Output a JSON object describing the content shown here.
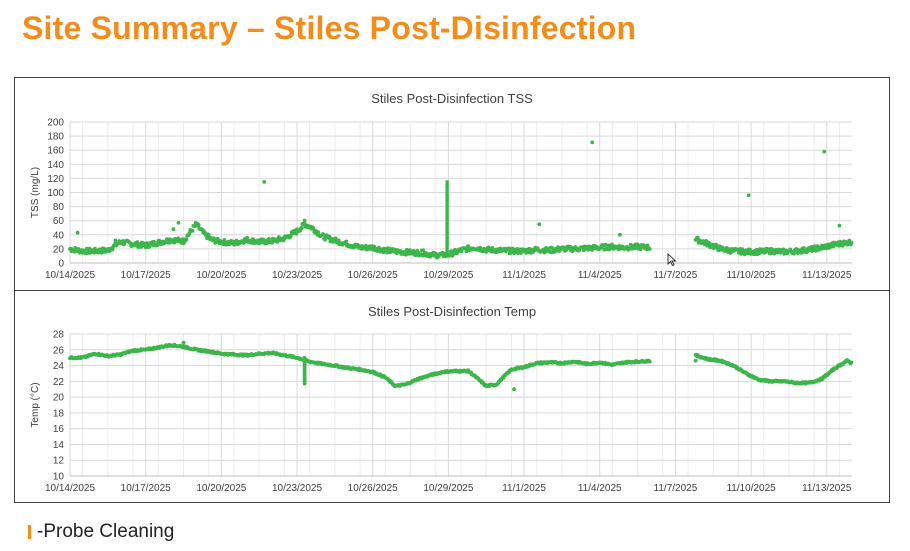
{
  "slide": {
    "title": "Site Summary – Stiles Post-Disinfection",
    "legend_label": "-Probe Cleaning",
    "accent_color": "#F28C1A"
  },
  "chart_data": [
    {
      "id": "tss",
      "type": "scatter",
      "title": "Stiles Post-Disinfection TSS",
      "xlabel": "",
      "ylabel": "TSS (mg/L)",
      "ylim": [
        0,
        200
      ],
      "yticks": [
        0,
        20,
        40,
        60,
        80,
        100,
        120,
        140,
        160,
        180,
        200
      ],
      "x_axis": {
        "type": "date",
        "range_days": [
          0,
          31
        ],
        "tick_days": [
          0,
          3,
          6,
          9,
          12,
          15,
          18,
          21,
          24,
          27,
          30
        ],
        "tick_labels": [
          "10/14/2025",
          "10/17/2025",
          "10/20/2025",
          "10/23/2025",
          "10/26/2025",
          "10/29/2025",
          "11/1/2025",
          "11/4/2025",
          "11/7/2025",
          "11/10/2025",
          "11/13/2025"
        ]
      },
      "grid": true,
      "color": "#3CB54A",
      "series": [
        {
          "name": "TSS",
          "continuous": [
            [
              0.0,
              20
            ],
            [
              0.5,
              17
            ],
            [
              1.0,
              17
            ],
            [
              1.5,
              18
            ],
            [
              2.0,
              30
            ],
            [
              2.5,
              27
            ],
            [
              3.0,
              25
            ],
            [
              3.5,
              29
            ],
            [
              4.0,
              33
            ],
            [
              4.5,
              31
            ],
            [
              5.0,
              55
            ],
            [
              5.3,
              42
            ],
            [
              5.6,
              33
            ],
            [
              6.0,
              30
            ],
            [
              6.5,
              28
            ],
            [
              7.0,
              33
            ],
            [
              7.5,
              30
            ],
            [
              8.0,
              31
            ],
            [
              8.5,
              35
            ],
            [
              9.0,
              45
            ],
            [
              9.3,
              55
            ],
            [
              9.6,
              50
            ],
            [
              10.0,
              38
            ],
            [
              10.5,
              32
            ],
            [
              11.0,
              27
            ],
            [
              11.5,
              22
            ],
            [
              12.0,
              22
            ],
            [
              12.5,
              18
            ],
            [
              13.0,
              16
            ],
            [
              13.5,
              15
            ],
            [
              14.0,
              14
            ],
            [
              14.3,
              12
            ],
            [
              14.6,
              11
            ],
            [
              15.0,
              12
            ],
            [
              15.5,
              18
            ],
            [
              16.0,
              22
            ],
            [
              16.5,
              19
            ],
            [
              17.0,
              18
            ],
            [
              17.5,
              17
            ],
            [
              18.0,
              17
            ],
            [
              18.5,
              19
            ],
            [
              19.0,
              18
            ],
            [
              19.5,
              20
            ],
            [
              20.0,
              20
            ],
            [
              20.5,
              21
            ],
            [
              21.0,
              22
            ],
            [
              21.5,
              23
            ],
            [
              22.0,
              22
            ],
            [
              22.5,
              23
            ],
            [
              23.0,
              22
            ]
          ],
          "gap_days": [
            23.0,
            24.8
          ],
          "continuous_2": [
            [
              24.8,
              34
            ],
            [
              25.3,
              27
            ],
            [
              25.8,
              20
            ],
            [
              26.3,
              17
            ],
            [
              26.8,
              16
            ],
            [
              27.3,
              16
            ],
            [
              27.8,
              17
            ],
            [
              28.3,
              16
            ],
            [
              28.8,
              17
            ],
            [
              29.3,
              19
            ],
            [
              29.8,
              22
            ],
            [
              30.3,
              26
            ],
            [
              30.8,
              29
            ],
            [
              31.0,
              30
            ]
          ],
          "spikes": [
            {
              "x": 14.95,
              "y_from": 10,
              "y_to": 115
            }
          ],
          "outliers": [
            [
              0.3,
              43
            ],
            [
              1.8,
              32
            ],
            [
              4.1,
              48
            ],
            [
              4.3,
              57
            ],
            [
              5.5,
              40
            ],
            [
              7.7,
              115
            ],
            [
              9.3,
              60
            ],
            [
              14.0,
              18
            ],
            [
              18.6,
              55
            ],
            [
              20.7,
              171
            ],
            [
              21.8,
              40
            ],
            [
              26.9,
              96
            ],
            [
              29.9,
              158
            ],
            [
              30.5,
              53
            ]
          ]
        }
      ]
    },
    {
      "id": "temp",
      "type": "scatter",
      "title": "Stiles Post-Disinfection Temp",
      "xlabel": "",
      "ylabel": "Temp (°C)",
      "ylim": [
        10,
        28
      ],
      "yticks": [
        10,
        12,
        14,
        16,
        18,
        20,
        22,
        24,
        26,
        28
      ],
      "x_axis": {
        "type": "date",
        "range_days": [
          0,
          31
        ],
        "tick_days": [
          0,
          3,
          6,
          9,
          12,
          15,
          18,
          21,
          24,
          27,
          30
        ],
        "tick_labels": [
          "10/14/2025",
          "10/17/2025",
          "10/20/2025",
          "10/23/2025",
          "10/26/2025",
          "10/29/2025",
          "11/1/2025",
          "11/4/2025",
          "11/7/2025",
          "11/10/2025",
          "11/13/2025"
        ]
      },
      "grid": true,
      "color": "#3CB54A",
      "series": [
        {
          "name": "Temp",
          "continuous": [
            [
              0.0,
              25.0
            ],
            [
              0.5,
              25.0
            ],
            [
              1.0,
              25.5
            ],
            [
              1.5,
              25.2
            ],
            [
              2.0,
              25.4
            ],
            [
              2.5,
              25.9
            ],
            [
              3.0,
              26.0
            ],
            [
              3.5,
              26.3
            ],
            [
              4.0,
              26.6
            ],
            [
              4.5,
              26.4
            ],
            [
              5.0,
              26.0
            ],
            [
              5.5,
              25.8
            ],
            [
              6.0,
              25.5
            ],
            [
              6.5,
              25.4
            ],
            [
              7.0,
              25.3
            ],
            [
              7.5,
              25.5
            ],
            [
              8.0,
              25.6
            ],
            [
              8.5,
              25.3
            ],
            [
              9.0,
              25.0
            ],
            [
              9.5,
              24.5
            ],
            [
              10.0,
              24.2
            ],
            [
              10.5,
              24.0
            ],
            [
              11.0,
              23.7
            ],
            [
              11.5,
              23.5
            ],
            [
              12.0,
              23.2
            ],
            [
              12.5,
              22.5
            ],
            [
              12.9,
              21.4
            ],
            [
              13.3,
              21.6
            ],
            [
              13.8,
              22.3
            ],
            [
              14.3,
              22.8
            ],
            [
              14.8,
              23.2
            ],
            [
              15.3,
              23.3
            ],
            [
              15.8,
              23.3
            ],
            [
              16.1,
              22.5
            ],
            [
              16.5,
              21.4
            ],
            [
              16.9,
              21.6
            ],
            [
              17.2,
              22.6
            ],
            [
              17.5,
              23.5
            ],
            [
              18.0,
              23.8
            ],
            [
              18.5,
              24.3
            ],
            [
              19.0,
              24.4
            ],
            [
              19.5,
              24.3
            ],
            [
              20.0,
              24.5
            ],
            [
              20.5,
              24.2
            ],
            [
              21.0,
              24.4
            ],
            [
              21.5,
              24.1
            ],
            [
              22.0,
              24.4
            ],
            [
              22.5,
              24.5
            ],
            [
              23.0,
              24.6
            ]
          ],
          "gap_days": [
            23.0,
            24.8
          ],
          "continuous_2": [
            [
              24.8,
              25.3
            ],
            [
              25.3,
              24.8
            ],
            [
              25.8,
              24.6
            ],
            [
              26.3,
              24.0
            ],
            [
              26.8,
              23.0
            ],
            [
              27.3,
              22.2
            ],
            [
              27.8,
              22.0
            ],
            [
              28.3,
              22.0
            ],
            [
              28.8,
              21.8
            ],
            [
              29.3,
              21.8
            ],
            [
              29.8,
              22.3
            ],
            [
              30.3,
              23.6
            ],
            [
              30.8,
              24.6
            ],
            [
              31.0,
              24.3
            ]
          ],
          "spikes": [
            {
              "x": 9.3,
              "y_from": 21.7,
              "y_to": 25.0
            }
          ],
          "outliers": [
            [
              17.6,
              21.0
            ],
            [
              24.8,
              24.6
            ],
            [
              4.5,
              26.9
            ]
          ]
        }
      ]
    }
  ]
}
